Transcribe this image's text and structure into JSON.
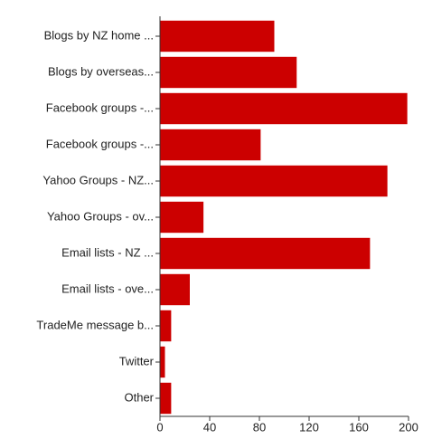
{
  "chart_data": {
    "type": "bar",
    "orientation": "horizontal",
    "categories": [
      "Blogs by NZ home ...",
      "Blogs by overseas...",
      "Facebook groups -...",
      "Facebook groups -...",
      "Yahoo Groups - NZ...",
      "Yahoo Groups - ov...",
      "Email lists - NZ ...",
      "Email lists - ove...",
      "TradeMe message b...",
      "Twitter",
      "Other"
    ],
    "values": [
      92,
      110,
      199,
      81,
      183,
      35,
      169,
      24,
      9,
      4,
      9
    ],
    "color": "#cc0000",
    "xlim": [
      0,
      200
    ],
    "xticks": [
      0,
      40,
      80,
      120,
      160,
      200
    ],
    "grid": false
  }
}
